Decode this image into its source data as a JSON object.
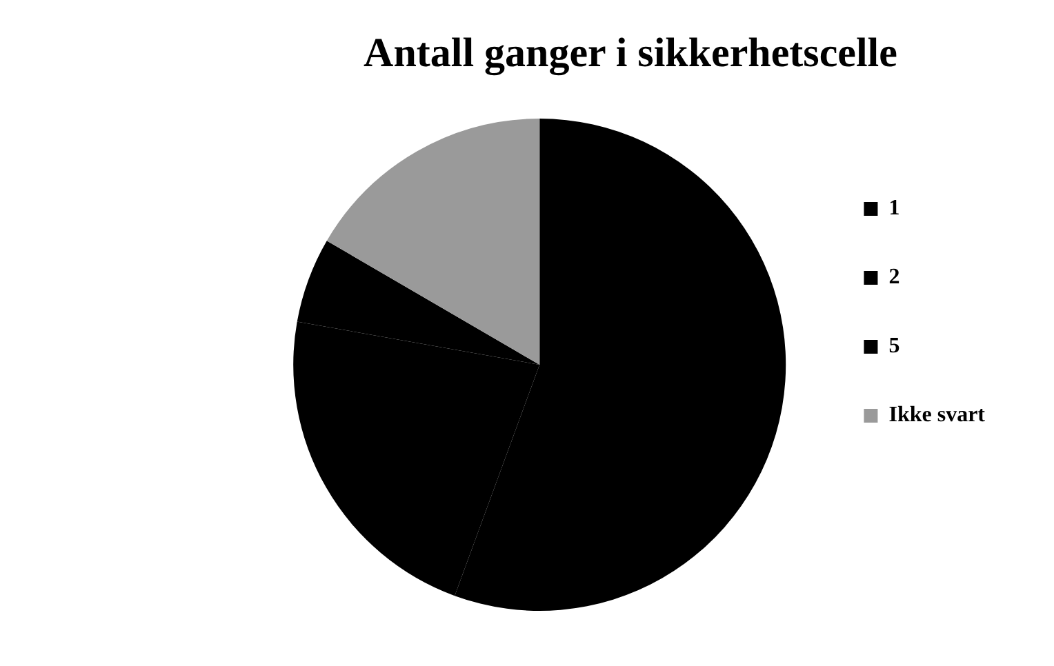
{
  "chart_data": {
    "type": "pie",
    "title": "Antall ganger i sikkerhetscelle",
    "categories": [
      "1",
      "2",
      "5",
      "Ikke svart"
    ],
    "values": [
      55.6,
      22.2,
      5.6,
      16.6
    ],
    "colors": [
      "#000000",
      "#000000",
      "#000000",
      "#9a9a9a"
    ],
    "legend": "right"
  }
}
